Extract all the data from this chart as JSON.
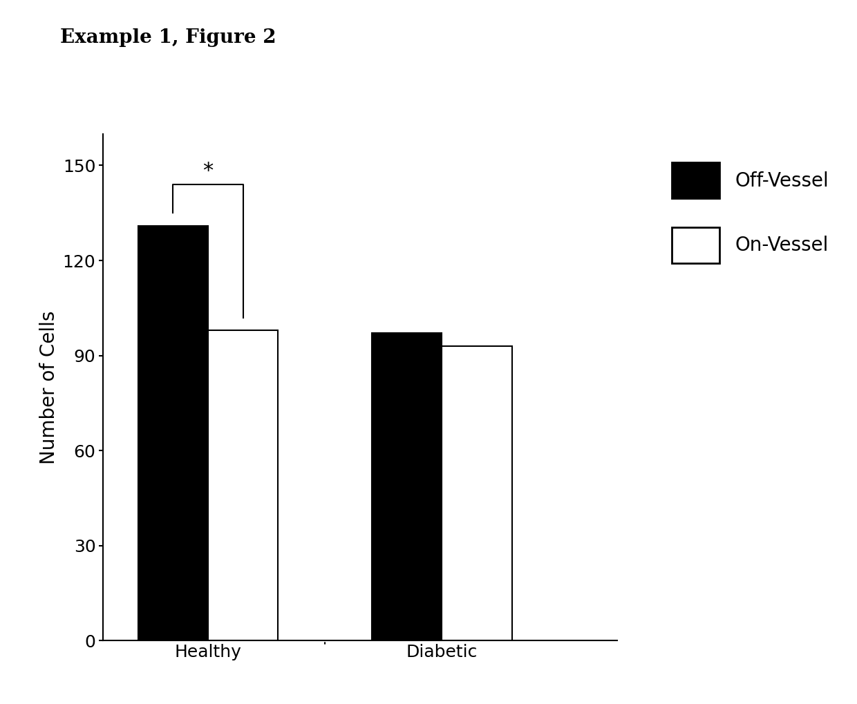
{
  "title": "Example 1, Figure 2",
  "ylabel": "Number of Cells",
  "categories": [
    "Healthy",
    "Diabetic"
  ],
  "off_vessel_values": [
    131,
    97
  ],
  "on_vessel_values": [
    98,
    93
  ],
  "off_vessel_color": "#000000",
  "on_vessel_color": "#ffffff",
  "bar_edge_color": "#000000",
  "bar_width": 0.3,
  "ylim": [
    0,
    160
  ],
  "yticks": [
    0,
    30,
    60,
    90,
    120,
    150
  ],
  "legend_labels": [
    "Off-Vessel",
    "On-Vessel"
  ],
  "background_color": "#ffffff",
  "title_fontsize": 20,
  "axis_fontsize": 20,
  "tick_fontsize": 18,
  "legend_fontsize": 20,
  "bar_linewidth": 1.5,
  "group_positions": [
    0,
    1
  ],
  "xlim": [
    -0.45,
    1.75
  ]
}
